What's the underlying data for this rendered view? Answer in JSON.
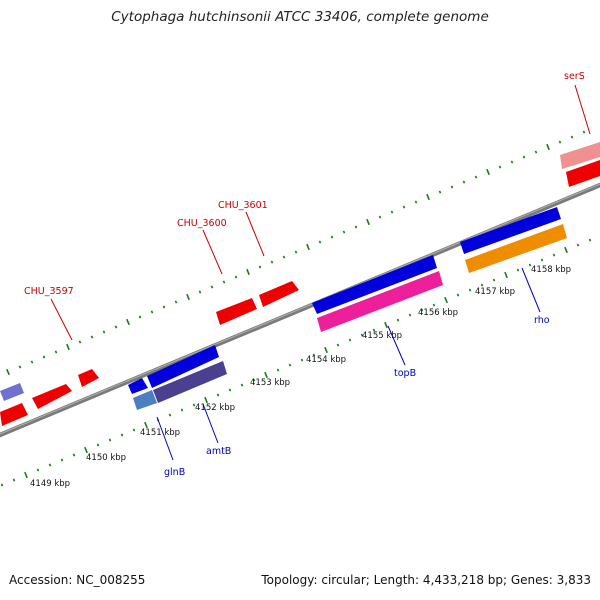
{
  "title": "Cytophaga hutchinsonii ATCC 33406, complete genome",
  "footer": {
    "accession": "Accession: NC_008255",
    "summary": "Topology: circular; Length: 4,433,218 bp; Genes: 3,833"
  },
  "colors": {
    "backbone": "#808080",
    "tick": "#1a7a1a",
    "forward_label": "#cc0000",
    "reverse_label": "#0000cc"
  },
  "kbp_labels": [
    "4149 kbp",
    "4150 kbp",
    "4151 kbp",
    "4152 kbp",
    "4153 kbp",
    "4154 kbp",
    "4155 kbp",
    "4156 kbp",
    "4157 kbp",
    "4158 kbp"
  ],
  "forward_gene_labels": [
    "CHU_3597",
    "CHU_3600",
    "CHU_3601",
    "serS"
  ],
  "reverse_gene_labels": [
    "glnB",
    "amtB",
    "topB",
    "rho"
  ]
}
